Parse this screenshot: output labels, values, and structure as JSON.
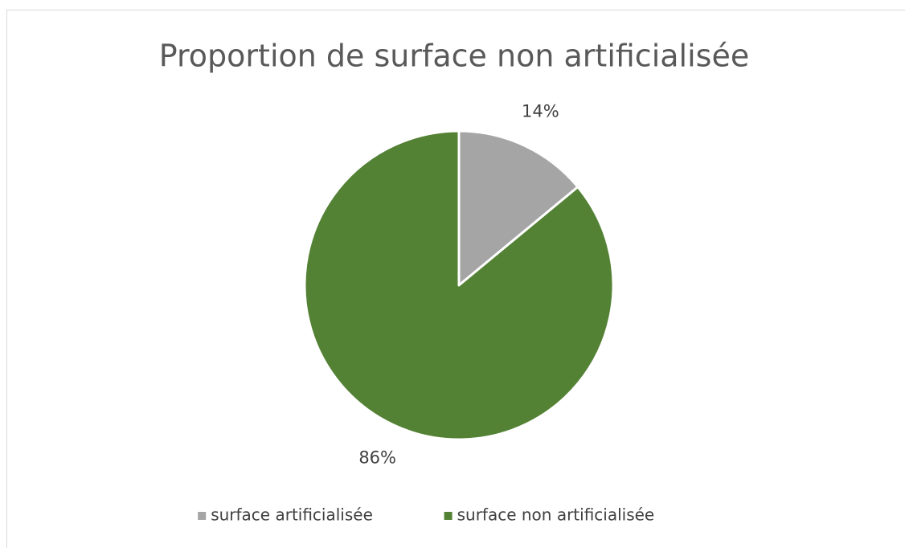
{
  "chart_data": {
    "type": "pie",
    "title": "Proportion de surface non artificialisée",
    "categories": [
      "surface artificialisée",
      "surface non artificialisée"
    ],
    "values": [
      14,
      86
    ],
    "value_labels": [
      "14%",
      "86%"
    ],
    "colors": [
      "#a5a5a5",
      "#548235"
    ],
    "legend": "bottom"
  }
}
